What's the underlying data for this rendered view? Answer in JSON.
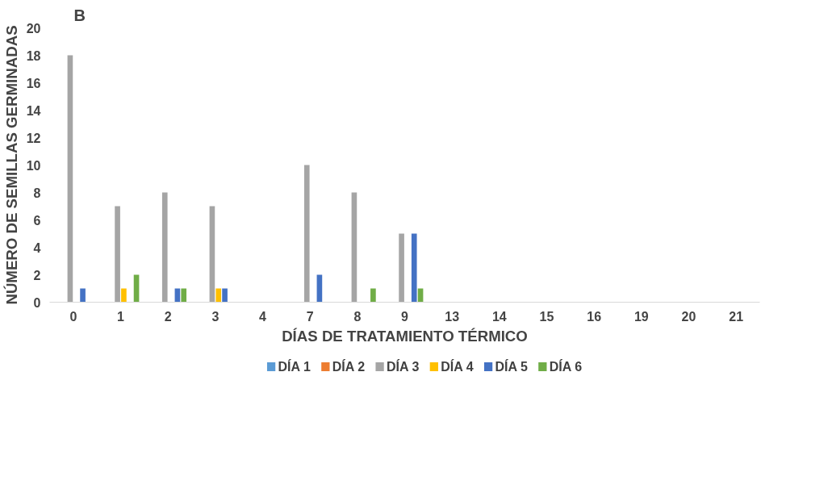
{
  "chart_data": {
    "type": "bar",
    "title": "B",
    "xlabel": "DÍAS DE TRATAMIENTO TÉRMICO",
    "ylabel": "NÚMERO DE SEMILLAS GERMINADAS",
    "categories": [
      "0",
      "1",
      "2",
      "3",
      "4",
      "7",
      "8",
      "9",
      "13",
      "14",
      "15",
      "16",
      "19",
      "20",
      "21"
    ],
    "series": [
      {
        "name": "DÍA 1",
        "color": "#5b9bd5",
        "values": [
          0,
          0,
          0,
          0,
          0,
          0,
          0,
          0,
          0,
          0,
          0,
          0,
          0,
          0,
          0
        ]
      },
      {
        "name": "DÍA 2",
        "color": "#ed7d31",
        "values": [
          0,
          0,
          0,
          0,
          0,
          0,
          0,
          0,
          0,
          0,
          0,
          0,
          0,
          0,
          0
        ]
      },
      {
        "name": "DÍA 3",
        "color": "#a5a5a5",
        "values": [
          18,
          7,
          8,
          7,
          0,
          10,
          8,
          5,
          0,
          0,
          0,
          0,
          0,
          0,
          0
        ]
      },
      {
        "name": "DÍA 4",
        "color": "#ffc000",
        "values": [
          0,
          1,
          0,
          1,
          0,
          0,
          0,
          0,
          0,
          0,
          0,
          0,
          0,
          0,
          0
        ]
      },
      {
        "name": "DÍA 5",
        "color": "#4472c4",
        "values": [
          1,
          0,
          1,
          1,
          0,
          2,
          0,
          5,
          0,
          0,
          0,
          0,
          0,
          0,
          0
        ]
      },
      {
        "name": "DÍA 6",
        "color": "#70ad47",
        "values": [
          0,
          2,
          1,
          0,
          0,
          0,
          1,
          1,
          0,
          0,
          0,
          0,
          0,
          0,
          0
        ]
      }
    ],
    "ylim": [
      0,
      20
    ],
    "yticks": [
      0,
      2,
      4,
      6,
      8,
      10,
      12,
      14,
      16,
      18,
      20
    ],
    "grid": false,
    "legend": "bottom"
  }
}
